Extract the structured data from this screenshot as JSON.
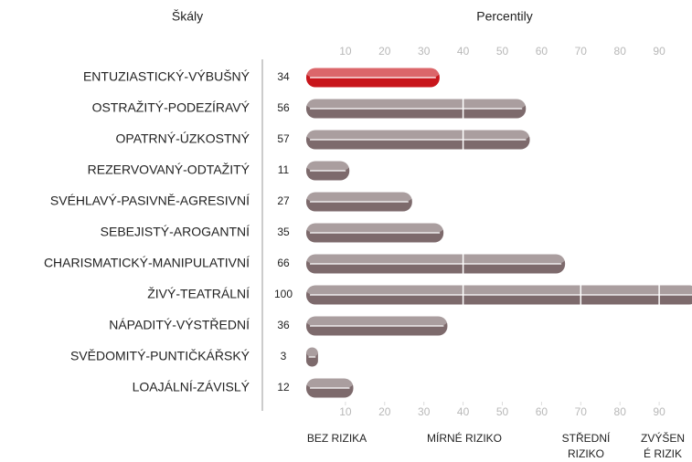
{
  "chart_data": {
    "type": "bar",
    "orientation": "horizontal",
    "scale_title": "Škály",
    "value_title": "Percentily",
    "categories": [
      "ENTUZIASTICKÝ-VÝBUŠNÝ",
      "OSTRAŽITÝ-PODEZÍRAVÝ",
      "OPATRNÝ-ÚZKOSTNÝ",
      "REZERVOVANÝ-ODTAŽITÝ",
      "SVÉHLAVÝ-PASIVNĚ-AGRESIVNÍ",
      "SEBEJISTÝ-AROGANTNÍ",
      "CHARISMATICKÝ-MANIPULATIVNÍ",
      "ŽIVÝ-TEATRÁLNÍ",
      "NÁPADITÝ-VÝSTŘEDNÍ",
      "SVĚDOMITÝ-PUNTIČKÁŘSKÝ",
      "LOAJÁLNÍ-ZÁVISLÝ"
    ],
    "values": [
      34,
      56,
      57,
      11,
      27,
      35,
      66,
      100,
      36,
      3,
      12
    ],
    "colors": [
      "#c8151b",
      "#7d6a6c",
      "#7d6a6c",
      "#7d6a6c",
      "#7d6a6c",
      "#7d6a6c",
      "#7d6a6c",
      "#7d6a6c",
      "#7d6a6c",
      "#7d6a6c",
      "#7d6a6c"
    ],
    "xlim": [
      0,
      100
    ],
    "xticks": [
      10,
      20,
      30,
      40,
      50,
      60,
      70,
      80,
      90
    ],
    "zone_boundaries": [
      40,
      70,
      90
    ],
    "zone_labels": [
      "BEZ RIZIKA",
      "MÍRNÉ RIZIKO",
      "STŘEDNÍ RIZIKO",
      "ZVÝŠENÉ RIZIKO"
    ]
  }
}
